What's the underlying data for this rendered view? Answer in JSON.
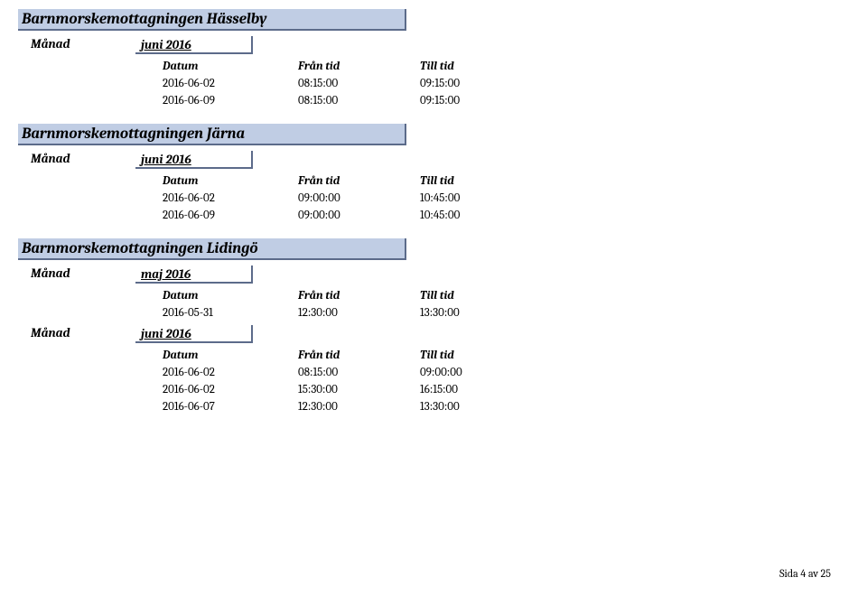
{
  "footer": "Sida 4 av 25",
  "headers": {
    "datum": "Datum",
    "fran": "Från tid",
    "till": "Till tid"
  },
  "month_label": "Månad",
  "sections": [
    {
      "title": "Barnmorskemottagningen Hässelby",
      "months": [
        {
          "name": "juni 2016",
          "rows": [
            {
              "d": "2016-06-02",
              "f": "08:15:00",
              "t": "09:15:00"
            },
            {
              "d": "2016-06-09",
              "f": "08:15:00",
              "t": "09:15:00"
            }
          ]
        }
      ]
    },
    {
      "title": "Barnmorskemottagningen Järna",
      "months": [
        {
          "name": "juni 2016",
          "rows": [
            {
              "d": "2016-06-02",
              "f": "09:00:00",
              "t": "10:45:00"
            },
            {
              "d": "2016-06-09",
              "f": "09:00:00",
              "t": "10:45:00"
            }
          ]
        }
      ]
    },
    {
      "title": "Barnmorskemottagningen Lidingö",
      "months": [
        {
          "name": "maj 2016",
          "rows": [
            {
              "d": "2016-05-31",
              "f": "12:30:00",
              "t": "13:30:00"
            }
          ]
        },
        {
          "name": "juni 2016",
          "rows": [
            {
              "d": "2016-06-02",
              "f": "08:15:00",
              "t": "09:00:00"
            },
            {
              "d": "2016-06-02",
              "f": "15:30:00",
              "t": "16:15:00"
            },
            {
              "d": "2016-06-07",
              "f": "12:30:00",
              "t": "13:30:00"
            }
          ]
        }
      ]
    }
  ]
}
